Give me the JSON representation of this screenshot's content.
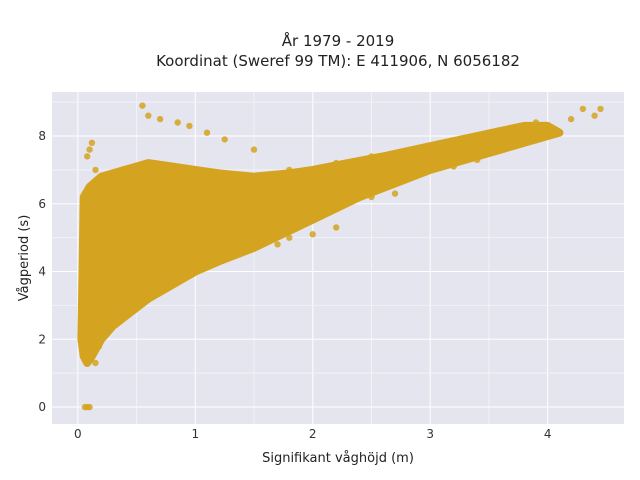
{
  "chart_data": {
    "type": "scatter",
    "title": "År 1979 - 2019",
    "subtitle": "Koordinat (Sweref 99 TM): E 411906, N 6056182",
    "xlabel": "Signifikant våghöjd (m)",
    "ylabel": "Vågperiod (s)",
    "xlim": [
      -0.22,
      4.65
    ],
    "ylim": [
      -0.5,
      9.3
    ],
    "x_ticks": [
      0,
      1,
      2,
      3,
      4
    ],
    "x_tick_labels": [
      "0",
      "1",
      "2",
      "3",
      "4"
    ],
    "y_ticks": [
      0,
      2,
      4,
      6,
      8
    ],
    "y_tick_labels": [
      "0",
      "2",
      "4",
      "6",
      "8"
    ],
    "grid": true,
    "legend": "none",
    "marker_color": "#D4A421",
    "background_color": "#E5E5F0",
    "series": [
      {
        "x": [
          0.06,
          0.08,
          0.1,
          0.05,
          0.08,
          0.12,
          0.15,
          0.18,
          0.2,
          0.25,
          0.3,
          0.12,
          0.1,
          0.15,
          0.2,
          0.25,
          0.3,
          0.35,
          0.4,
          0.5,
          0.6,
          0.7,
          0.15,
          0.2,
          0.3,
          0.4,
          0.5,
          0.6,
          0.8,
          1.0,
          1.2,
          0.2,
          0.3,
          0.5,
          0.7,
          0.9,
          1.1,
          1.3,
          1.5,
          1.7,
          0.3,
          0.5,
          0.8,
          1.0,
          1.3,
          1.6,
          1.8,
          2.0,
          2.2,
          0.5,
          0.8,
          1.1,
          1.4,
          1.7,
          2.0,
          2.3,
          2.5,
          2.7,
          1.0,
          1.5,
          2.0,
          2.4,
          2.7,
          3.0,
          3.2,
          3.4,
          1.8,
          2.2,
          2.6,
          3.0,
          3.3,
          3.6,
          3.8,
          4.0,
          2.5,
          3.0,
          3.4,
          3.7,
          4.0,
          4.2,
          4.4,
          4.45,
          0.55,
          0.6,
          0.7,
          0.85,
          0.95,
          1.1,
          1.25,
          1.5,
          0.08,
          0.1,
          0.12,
          0.05,
          3.5,
          3.9,
          4.3
        ],
        "y": [
          0.0,
          0.0,
          0.0,
          3.5,
          2.0,
          1.5,
          1.3,
          1.8,
          2.2,
          2.5,
          2.8,
          6.5,
          5.5,
          4.5,
          4.0,
          3.6,
          3.4,
          3.2,
          3.4,
          3.5,
          3.7,
          3.9,
          7.0,
          6.8,
          6.9,
          7.0,
          6.9,
          7.2,
          7.0,
          6.9,
          6.9,
          4.8,
          4.7,
          4.8,
          4.6,
          4.4,
          4.5,
          4.6,
          4.7,
          4.8,
          5.5,
          5.6,
          5.5,
          5.4,
          5.3,
          5.2,
          5.0,
          5.1,
          5.3,
          6.0,
          6.0,
          6.0,
          6.0,
          6.0,
          6.0,
          6.1,
          6.2,
          6.3,
          6.6,
          6.6,
          6.7,
          6.8,
          6.9,
          7.0,
          7.1,
          7.3,
          7.0,
          7.2,
          7.4,
          7.6,
          7.7,
          7.9,
          8.0,
          8.1,
          7.4,
          7.6,
          7.8,
          7.9,
          8.2,
          8.5,
          8.6,
          8.8,
          8.9,
          8.6,
          8.5,
          8.4,
          8.3,
          8.1,
          7.9,
          7.6,
          7.4,
          7.6,
          7.8,
          3.4,
          8.1,
          8.4,
          8.8
        ]
      }
    ]
  }
}
